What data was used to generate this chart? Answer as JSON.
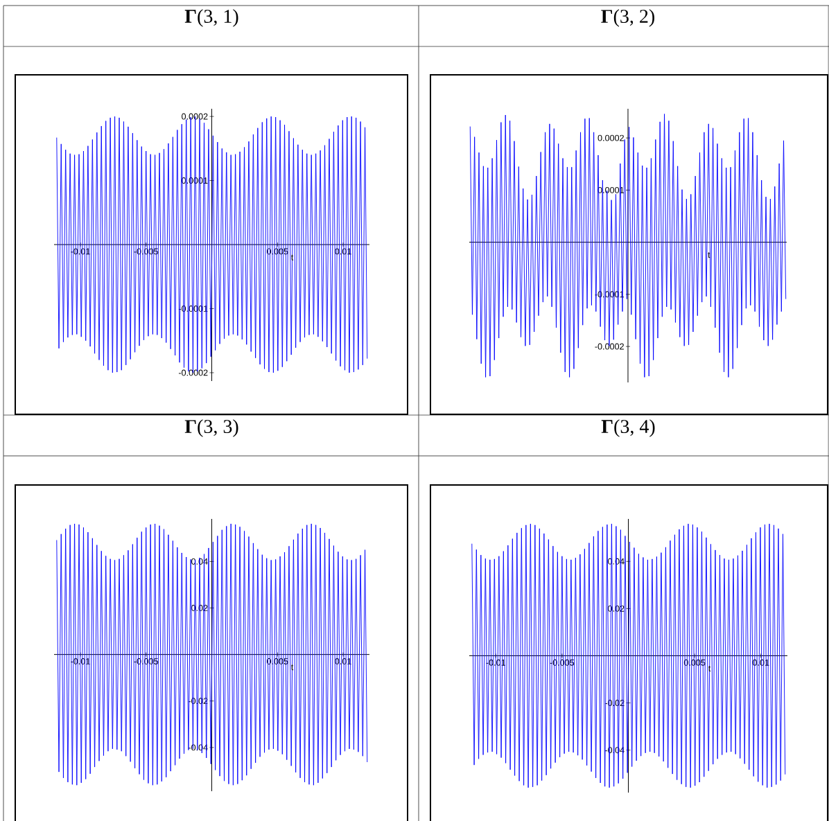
{
  "chart_data": [
    {
      "type": "line",
      "title": "**Γ**(3, 1)",
      "xlabel": "t",
      "xlim": [
        -0.012,
        0.012
      ],
      "ylim": [
        -0.000213,
        0.000212
      ],
      "xticks": [
        -0.01,
        -0.005,
        0.005,
        0.01
      ],
      "yticks": [
        0.0002,
        0.0001,
        -0.0001,
        -0.0002
      ],
      "x": [
        -0.0118,
        -0.01163,
        -0.01146,
        -0.01129,
        -0.01112,
        -0.01095,
        -0.01078,
        -0.01061,
        -0.01044,
        -0.01027,
        -0.0101,
        -0.00993,
        -0.00976,
        -0.00959,
        -0.00942,
        -0.00925,
        -0.00908,
        -0.00891,
        -0.00874,
        -0.00857,
        -0.0084,
        -0.00823,
        -0.00806,
        -0.00789,
        -0.00772,
        -0.00755,
        -0.00738,
        -0.00721,
        -0.00704,
        -0.00687,
        -0.0067,
        -0.00653,
        -0.00636,
        -0.00619,
        -0.00602,
        -0.00585,
        -0.00568,
        -0.00551,
        -0.00534,
        -0.00517,
        -0.005,
        -0.00483,
        -0.00466,
        -0.00449,
        -0.00432,
        -0.00415,
        -0.00398,
        -0.00381,
        -0.00364,
        -0.00347,
        -0.0033,
        -0.00313,
        -0.00296,
        -0.00279,
        -0.00262,
        -0.00245,
        -0.00228,
        -0.00211,
        -0.00194,
        -0.00177,
        -0.0016,
        -0.00143,
        -0.00126,
        -0.00109,
        -0.00092,
        -0.00075,
        -0.00058,
        -0.00041,
        -0.00024,
        -7e-05,
        0.0001,
        0.00027,
        0.00044,
        0.00061,
        0.00078,
        0.00095,
        0.00112,
        0.00129,
        0.00146,
        0.00163,
        0.0018,
        0.00197,
        0.00214,
        0.00231,
        0.00248,
        0.00265,
        0.00282,
        0.00299,
        0.00316,
        0.00333,
        0.0035,
        0.00367,
        0.00384,
        0.00401,
        0.00418,
        0.00435,
        0.00452,
        0.00469,
        0.00486,
        0.00503,
        0.0052,
        0.00537,
        0.00554,
        0.00571,
        0.00588,
        0.00605,
        0.00622,
        0.00639,
        0.00656,
        0.00673,
        0.0069,
        0.00707,
        0.00724,
        0.00741,
        0.00758,
        0.00775,
        0.00792,
        0.00809,
        0.00826,
        0.00843,
        0.0086,
        0.00877,
        0.00894,
        0.00911,
        0.00928,
        0.00945,
        0.00962,
        0.00979,
        0.00996,
        0.01013,
        0.0103,
        0.01047,
        0.01064,
        0.01081,
        0.01098,
        0.01115,
        0.01132,
        0.01149,
        0.01166,
        0.01183
      ],
      "series": [
        {
          "color": "#0000ff",
          "values": [
            0.000167,
            -0.000162,
            0.000157,
            -0.000152,
            0.000148,
            -0.000145,
            0.000142,
            -0.000141,
            0.00014,
            -0.00014,
            0.000141,
            -0.000144,
            0.000146,
            -0.00015,
            0.000154,
            -0.000159,
            0.000164,
            -0.00017,
            0.000175,
            -0.00018,
            0.000185,
            -0.000189,
            0.000193,
            -0.000196,
            0.000198,
            -0.0002,
            0.0002,
            -0.000199,
            0.000198,
            -0.000196,
            0.000192,
            -0.000188,
            0.000184,
            -0.000179,
            0.000174,
            -0.000168,
            0.000163,
            -0.000158,
            0.000153,
            -0.000149,
            0.000146,
            -0.000143,
            0.000141,
            -0.00014,
            0.00014,
            -0.000141,
            0.000143,
            -0.000146,
            0.000149,
            -0.000153,
            0.000158,
            -0.000163,
            0.000168,
            -0.000173,
            0.000179,
            -0.000184,
            0.000188,
            -0.000192,
            0.000195,
            -0.000198,
            0.000199,
            -0.0002,
            0.0002,
            -0.000198,
            0.000196,
            -0.000193,
            0.00019,
            -0.000185,
            0.00018,
            -0.000175,
            0.00017,
            -0.000165,
            0.00016,
            -0.000155,
            0.00015,
            -0.000147,
            0.000144,
            -0.000142,
            0.00014,
            -0.00014,
            0.000141,
            -0.000142,
            0.000145,
            -0.000148,
            0.000152,
            -0.000156,
            0.000161,
            -0.000167,
            0.000172,
            -0.000177,
            0.000182,
            -0.000187,
            0.000191,
            -0.000194,
            0.000197,
            -0.000199,
            0.0002,
            -0.0002,
            0.000199,
            -0.000197,
            0.000194,
            -0.000191,
            0.000187,
            -0.000182,
            0.000177,
            -0.000172,
            0.000166,
            -0.000161,
            0.000156,
            -0.000152,
            0.000148,
            -0.000145,
            0.000142,
            -0.000141,
            0.00014,
            -0.00014,
            0.000142,
            -0.000144,
            0.000147,
            -0.000151,
            0.000155,
            -0.00016,
            0.000165,
            -0.00017,
            0.000176,
            -0.000181,
            0.000186,
            -0.00019,
            0.000194,
            -0.000196,
            0.000199,
            -0.0002,
            0.0002,
            -0.000199,
            0.000198,
            -0.000195,
            0.000192,
            -0.000188,
            0.000183,
            -0.000178
          ]
        }
      ]
    },
    {
      "type": "line",
      "title": "**Γ**(3, 2)",
      "xlabel": "t",
      "ylim": [
        -0.000269,
        0.000256
      ],
      "yticks": [
        0.0002,
        0.0001,
        -0.0001,
        -0.0002
      ],
      "tick_labels": "y",
      "categories": [
        null,
        null,
        null,
        null,
        null,
        null,
        null,
        null,
        null,
        null,
        null,
        null,
        null,
        null,
        null,
        null,
        null,
        null,
        null,
        null,
        null,
        null,
        null,
        null,
        null,
        null,
        null,
        null,
        null,
        null,
        null,
        null,
        null,
        null,
        null,
        null,
        null,
        null,
        null,
        null,
        null,
        null,
        null,
        null,
        null,
        null,
        null,
        null,
        null,
        null,
        null,
        null,
        null,
        null,
        null,
        null,
        null,
        null,
        null,
        null,
        null,
        null,
        null,
        null,
        null,
        null,
        null,
        null,
        null,
        null,
        null,
        null,
        null,
        null,
        null,
        null,
        null,
        null,
        null,
        null,
        null,
        null,
        null,
        null,
        null,
        null,
        null,
        null,
        null,
        null,
        null,
        null,
        null,
        null,
        null,
        null,
        null,
        null,
        null,
        null,
        null,
        null,
        null,
        null,
        null,
        null,
        null,
        null,
        null,
        null,
        null,
        null,
        null,
        null,
        null,
        null,
        null,
        null,
        null,
        null,
        null,
        null,
        null,
        null,
        null,
        null,
        null,
        null,
        null,
        null,
        null,
        null,
        null,
        null,
        null,
        null,
        null,
        null,
        null,
        null,
        null,
        null,
        null,
        null
      ],
      "series": [
        {
          "color": "#0000ff",
          "values": [
            0.000222,
            -0.000139,
            0.000202,
            -0.000186,
            0.000172,
            -0.000233,
            0.000146,
            -0.000259,
            0.000143,
            -0.000257,
            0.000161,
            -0.000226,
            0.000196,
            -0.000184,
            0.00023,
            -0.000143,
            0.000244,
            -0.000124,
            0.000233,
            -0.000129,
            0.000194,
            -0.000154,
            0.000145,
            -0.000182,
            0.000103,
            -0.000199,
            8.2e-05,
            -0.000197,
            9.1e-05,
            -0.000172,
            0.000127,
            -0.000141,
            0.000173,
            -0.000115,
            0.000211,
            -0.000104,
            0.000227,
            -0.000124,
            0.000218,
            -0.000164,
            0.000189,
            -0.000212,
            0.000161,
            -0.000249,
            0.000144,
            -0.000259,
            0.000144,
            -0.000243,
            0.000176,
            -0.000203,
            0.000211,
            -0.000159,
            0.000237,
            -0.000127,
            0.000238,
            -0.000121,
            0.000211,
            -0.000133,
            0.000167,
            -0.000162,
            0.000119,
            -0.000188,
            9.9e-05,
            -0.000199,
            8.1e-05,
            -0.000187,
            9.2e-05,
            -0.000158,
            0.000151,
            -0.000133,
            0.000197,
            -0.000109,
            0.000221,
            -0.000139,
            0.000201,
            -0.000186,
            0.000172,
            -0.000233,
            0.000147,
            -0.000259,
            0.000143,
            -0.000257,
            0.000161,
            -0.000226,
            0.000197,
            -0.000184,
            0.000231,
            -0.000143,
            0.000246,
            -0.000124,
            0.000233,
            -0.000129,
            0.000194,
            -0.000154,
            0.000146,
            -0.000182,
            0.000101,
            -0.000199,
            8.3e-05,
            -0.000197,
            9.2e-05,
            -0.000172,
            0.000127,
            -0.000141,
            0.000172,
            -0.000115,
            0.000211,
            -0.000104,
            0.000227,
            -0.000124,
            0.000219,
            -0.000164,
            0.000189,
            -0.000212,
            0.000161,
            -0.000249,
            0.000143,
            -0.000259,
            0.000144,
            -0.000243,
            0.000176,
            -0.000203,
            0.000211,
            -0.000159,
            0.000237,
            -0.000127,
            0.000238,
            -0.000121,
            0.000211,
            -0.000133,
            0.000167,
            -0.000162,
            0.000119,
            -0.000188,
            8.7e-05,
            -0.000199,
            8.3e-05,
            -0.000187,
            0.000107,
            -0.000158,
            0.000151,
            -0.000133,
            0.000195,
            -0.000109
          ]
        }
      ]
    },
    {
      "type": "line",
      "title": "**Γ**(3, 3)",
      "xlabel": "t",
      "xlim": [
        -0.012,
        0.012
      ],
      "ylim": [
        -0.0588,
        0.0583
      ],
      "xticks": [
        -0.01,
        -0.005,
        0.005,
        0.01
      ],
      "yticks": [
        0.04,
        0.02,
        -0.02,
        -0.04
      ],
      "x": [
        -0.0118,
        -0.01163,
        -0.01146,
        -0.01129,
        -0.01112,
        -0.01095,
        -0.01078,
        -0.01061,
        -0.01044,
        -0.01027,
        -0.0101,
        -0.00993,
        -0.00976,
        -0.00959,
        -0.00942,
        -0.00925,
        -0.00908,
        -0.00891,
        -0.00874,
        -0.00857,
        -0.0084,
        -0.00823,
        -0.00806,
        -0.00789,
        -0.00772,
        -0.00755,
        -0.00738,
        -0.00721,
        -0.00704,
        -0.00687,
        -0.0067,
        -0.00653,
        -0.00636,
        -0.00619,
        -0.00602,
        -0.00585,
        -0.00568,
        -0.00551,
        -0.00534,
        -0.00517,
        -0.005,
        -0.00483,
        -0.00466,
        -0.00449,
        -0.00432,
        -0.00415,
        -0.00398,
        -0.00381,
        -0.00364,
        -0.00347,
        -0.0033,
        -0.00313,
        -0.00296,
        -0.00279,
        -0.00262,
        -0.00245,
        -0.00228,
        -0.00211,
        -0.00194,
        -0.00177,
        -0.0016,
        -0.00143,
        -0.00126,
        -0.00109,
        -0.00092,
        -0.00075,
        -0.00058,
        -0.00041,
        -0.00024,
        -7e-05,
        0.0001,
        0.00027,
        0.00044,
        0.00061,
        0.00078,
        0.00095,
        0.00112,
        0.00129,
        0.00146,
        0.00163,
        0.0018,
        0.00197,
        0.00214,
        0.00231,
        0.00248,
        0.00265,
        0.00282,
        0.00299,
        0.00316,
        0.00333,
        0.0035,
        0.00367,
        0.00384,
        0.00401,
        0.00418,
        0.00435,
        0.00452,
        0.00469,
        0.00486,
        0.00503,
        0.0052,
        0.00537,
        0.00554,
        0.00571,
        0.00588,
        0.00605,
        0.00622,
        0.00639,
        0.00656,
        0.00673,
        0.0069,
        0.00707,
        0.00724,
        0.00741,
        0.00758,
        0.00775,
        0.00792,
        0.00809,
        0.00826,
        0.00843,
        0.0086,
        0.00877,
        0.00894,
        0.00911,
        0.00928,
        0.00945,
        0.00962,
        0.00979,
        0.00996,
        0.01013,
        0.0103,
        0.01047,
        0.01064,
        0.01081,
        0.01098,
        0.01115,
        0.01132,
        0.01149,
        0.01166,
        0.01183
      ],
      "series": [
        {
          "color": "#0000ff",
          "values": [
            0.0492,
            -0.0505,
            0.0518,
            -0.0531,
            0.0541,
            -0.0549,
            0.0557,
            -0.0559,
            0.0562,
            -0.0562,
            0.0559,
            -0.0552,
            0.0546,
            -0.0536,
            0.0526,
            -0.0513,
            0.05,
            -0.0484,
            0.0471,
            -0.0458,
            0.0445,
            -0.0435,
            0.0424,
            -0.0416,
            0.0411,
            -0.0406,
            0.0406,
            -0.0409,
            0.0411,
            -0.0416,
            0.0427,
            -0.0437,
            0.0448,
            -0.0461,
            0.0474,
            -0.0489,
            0.0502,
            -0.0515,
            0.0528,
            -0.0539,
            0.0546,
            -0.0554,
            0.0559,
            -0.0562,
            0.0562,
            -0.0559,
            0.0554,
            -0.0546,
            0.0539,
            -0.0528,
            0.0515,
            -0.0502,
            0.0489,
            -0.0476,
            0.0461,
            -0.0448,
            0.0437,
            -0.0427,
            0.0419,
            -0.0411,
            0.0409,
            -0.0406,
            0.0406,
            -0.0411,
            0.0416,
            -0.0424,
            0.0432,
            -0.0445,
            0.0458,
            -0.0471,
            0.0484,
            -0.0497,
            0.051,
            -0.0523,
            0.0536,
            -0.0544,
            0.0552,
            -0.0557,
            0.0562,
            -0.0562,
            0.0559,
            -0.0557,
            0.0549,
            -0.0541,
            0.0531,
            -0.052,
            0.0507,
            -0.0492,
            0.0479,
            -0.0466,
            0.0453,
            -0.044,
            0.0429,
            -0.0422,
            0.0414,
            -0.0409,
            0.0406,
            -0.0406,
            0.0409,
            -0.0414,
            0.0422,
            -0.0429,
            0.044,
            -0.0453,
            0.0466,
            -0.0479,
            0.0494,
            -0.0507,
            0.052,
            -0.0531,
            0.0541,
            -0.0549,
            0.0557,
            -0.0559,
            0.0562,
            -0.0562,
            0.0557,
            -0.0552,
            0.0544,
            -0.0533,
            0.0523,
            -0.051,
            0.0497,
            -0.0484,
            0.0468,
            -0.0455,
            0.0442,
            -0.0432,
            0.0422,
            -0.0416,
            0.0409,
            -0.0406,
            0.0406,
            -0.0409,
            0.0411,
            -0.0419,
            0.0427,
            -0.0437,
            0.045,
            -0.0463
          ]
        }
      ]
    },
    {
      "type": "line",
      "title": "**Γ**(3, 4)",
      "xlabel": "t",
      "xlim": [
        -0.012,
        0.012
      ],
      "ylim": [
        -0.058,
        0.058
      ],
      "xticks": [
        -0.01,
        -0.005,
        0.005,
        0.01
      ],
      "yticks": [
        0.04,
        0.02,
        -0.02,
        -0.04
      ],
      "x": [
        -0.0118,
        -0.01163,
        -0.01146,
        -0.01129,
        -0.01112,
        -0.01095,
        -0.01078,
        -0.01061,
        -0.01044,
        -0.01027,
        -0.0101,
        -0.00993,
        -0.00976,
        -0.00959,
        -0.00942,
        -0.00925,
        -0.00908,
        -0.00891,
        -0.00874,
        -0.00857,
        -0.0084,
        -0.00823,
        -0.00806,
        -0.00789,
        -0.00772,
        -0.00755,
        -0.00738,
        -0.00721,
        -0.00704,
        -0.00687,
        -0.0067,
        -0.00653,
        -0.00636,
        -0.00619,
        -0.00602,
        -0.00585,
        -0.00568,
        -0.00551,
        -0.00534,
        -0.00517,
        -0.005,
        -0.00483,
        -0.00466,
        -0.00449,
        -0.00432,
        -0.00415,
        -0.00398,
        -0.00381,
        -0.00364,
        -0.00347,
        -0.0033,
        -0.00313,
        -0.00296,
        -0.00279,
        -0.00262,
        -0.00245,
        -0.00228,
        -0.00211,
        -0.00194,
        -0.00177,
        -0.0016,
        -0.00143,
        -0.00126,
        -0.00109,
        -0.00092,
        -0.00075,
        -0.00058,
        -0.00041,
        -0.00024,
        -7e-05,
        0.0001,
        0.00027,
        0.00044,
        0.00061,
        0.00078,
        0.00095,
        0.00112,
        0.00129,
        0.00146,
        0.00163,
        0.0018,
        0.00197,
        0.00214,
        0.00231,
        0.00248,
        0.00265,
        0.00282,
        0.00299,
        0.00316,
        0.00333,
        0.0035,
        0.00367,
        0.00384,
        0.00401,
        0.00418,
        0.00435,
        0.00452,
        0.00469,
        0.00486,
        0.00503,
        0.0052,
        0.00537,
        0.00554,
        0.00571,
        0.00588,
        0.00605,
        0.00622,
        0.00639,
        0.00656,
        0.00673,
        0.0069,
        0.00707,
        0.00724,
        0.00741,
        0.00758,
        0.00775,
        0.00792,
        0.00809,
        0.00826,
        0.00843,
        0.0086,
        0.00877,
        0.00894,
        0.00911,
        0.00928,
        0.00945,
        0.00962,
        0.00979,
        0.00996,
        0.01013,
        0.0103,
        0.01047,
        0.01064,
        0.01081,
        0.01098,
        0.01115,
        0.01132,
        0.01149,
        0.01166,
        0.01183
      ],
      "series": [
        {
          "color": "#0000ff",
          "values": [
            0.0475,
            -0.0463,
            0.045,
            -0.0437,
            0.0427,
            -0.042,
            0.0412,
            -0.041,
            0.0407,
            -0.0407,
            0.041,
            -0.0417,
            0.0422,
            -0.0432,
            0.0443,
            -0.0455,
            0.0468,
            -0.0483,
            0.0496,
            -0.0508,
            0.0521,
            -0.0531,
            0.0541,
            -0.0549,
            0.0554,
            -0.0559,
            0.0559,
            -0.0556,
            0.0554,
            -0.0549,
            0.0539,
            -0.0529,
            0.0518,
            -0.0506,
            0.0493,
            -0.0478,
            0.0465,
            -0.0453,
            0.044,
            -0.043,
            0.0422,
            -0.0415,
            0.041,
            -0.0407,
            0.0407,
            -0.041,
            0.0415,
            -0.0422,
            0.043,
            -0.044,
            0.0453,
            -0.0465,
            0.0478,
            -0.0491,
            0.0506,
            -0.0518,
            0.0529,
            -0.0539,
            0.0546,
            -0.0554,
            0.0556,
            -0.0559,
            0.0559,
            -0.0554,
            0.0549,
            -0.0541,
            0.0534,
            -0.0521,
            0.0508,
            -0.0496,
            0.0483,
            -0.047,
            0.0458,
            -0.0445,
            0.0432,
            -0.0425,
            0.0417,
            -0.0412,
            0.0407,
            -0.0407,
            0.041,
            -0.0412,
            0.042,
            -0.0427,
            0.0437,
            -0.0448,
            0.046,
            -0.0475,
            0.0488,
            -0.0501,
            0.0513,
            -0.0526,
            0.0536,
            -0.0544,
            0.0551,
            -0.0556,
            0.0559,
            -0.0559,
            0.0556,
            -0.0551,
            0.0544,
            -0.0536,
            0.0526,
            -0.0513,
            0.0501,
            -0.0488,
            0.0473,
            -0.046,
            0.0448,
            -0.0437,
            0.0427,
            -0.042,
            0.0412,
            -0.041,
            0.0407,
            -0.0407,
            0.0412,
            -0.0417,
            0.0425,
            -0.0435,
            0.0445,
            -0.0458,
            0.047,
            -0.0483,
            0.0498,
            -0.0511,
            0.0523,
            -0.0534,
            0.0544,
            -0.0549,
            0.0556,
            -0.0559,
            0.0559,
            -0.0556,
            0.0554,
            -0.0546,
            0.0539,
            -0.0529,
            0.0516,
            -0.0503
          ]
        }
      ]
    }
  ]
}
